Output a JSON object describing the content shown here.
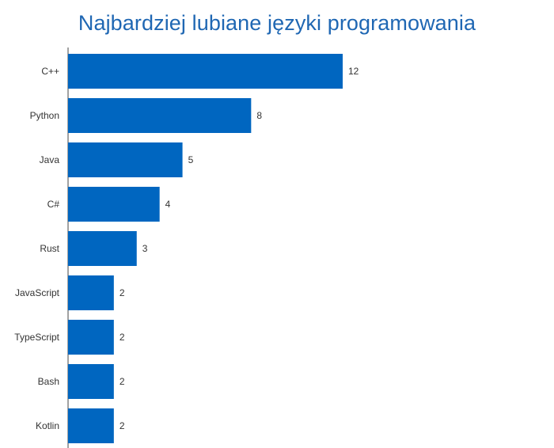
{
  "chart_data": {
    "type": "bar",
    "orientation": "horizontal",
    "title": "Najbardziej lubiane języki programowania",
    "xlabel": "",
    "ylabel": "",
    "categories": [
      "C++",
      "Python",
      "Java",
      "C#",
      "Rust",
      "JavaScript",
      "TypeScript",
      "Bash",
      "Kotlin"
    ],
    "values": [
      12,
      8,
      5,
      4,
      3,
      2,
      2,
      2,
      2
    ],
    "data_labels": [
      "12",
      "8",
      "5",
      "4",
      "3",
      "2",
      "2",
      "2",
      "2"
    ],
    "xlim": [
      0,
      12
    ],
    "grid": false,
    "legend": "none",
    "bar_color": "#0066c0",
    "title_color": "#1f67b3"
  }
}
